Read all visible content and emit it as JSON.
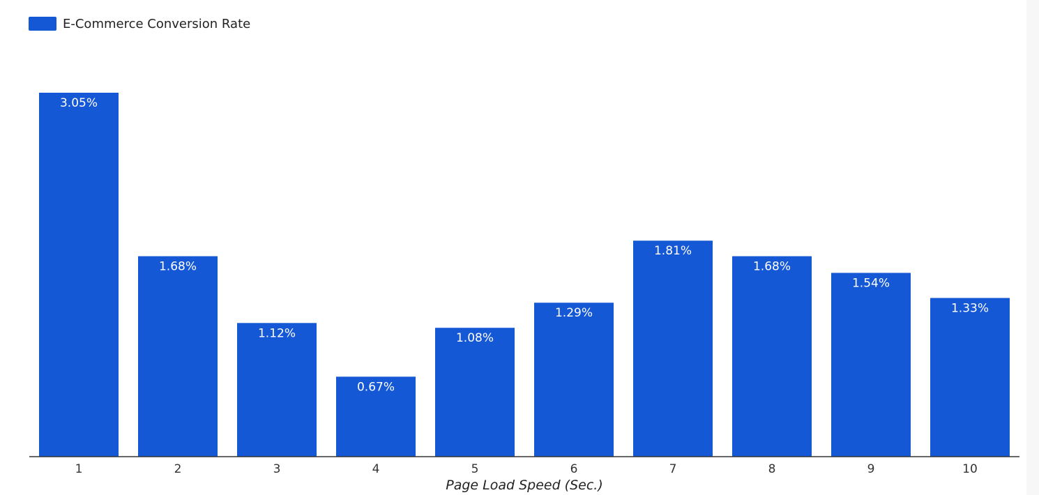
{
  "chart_data": {
    "type": "bar",
    "title": "",
    "xlabel": "Page Load Speed (Sec.)",
    "ylabel": "",
    "categories": [
      "1",
      "2",
      "3",
      "4",
      "5",
      "6",
      "7",
      "8",
      "9",
      "10"
    ],
    "series": [
      {
        "name": "E-Commerce Conversion Rate",
        "values": [
          3.05,
          1.68,
          1.12,
          0.67,
          1.08,
          1.29,
          1.81,
          1.68,
          1.54,
          1.33
        ]
      }
    ],
    "data_labels": [
      "3.05%",
      "1.68%",
      "1.12%",
      "0.67%",
      "1.08%",
      "1.29%",
      "1.81%",
      "1.68%",
      "1.54%",
      "1.33%"
    ],
    "ylim": [
      0,
      3.05
    ],
    "legend_position": "top-left",
    "grid": false,
    "bar_color": "#1558D6",
    "label_color": "#FFFFFF",
    "axis_color": "#333333"
  }
}
